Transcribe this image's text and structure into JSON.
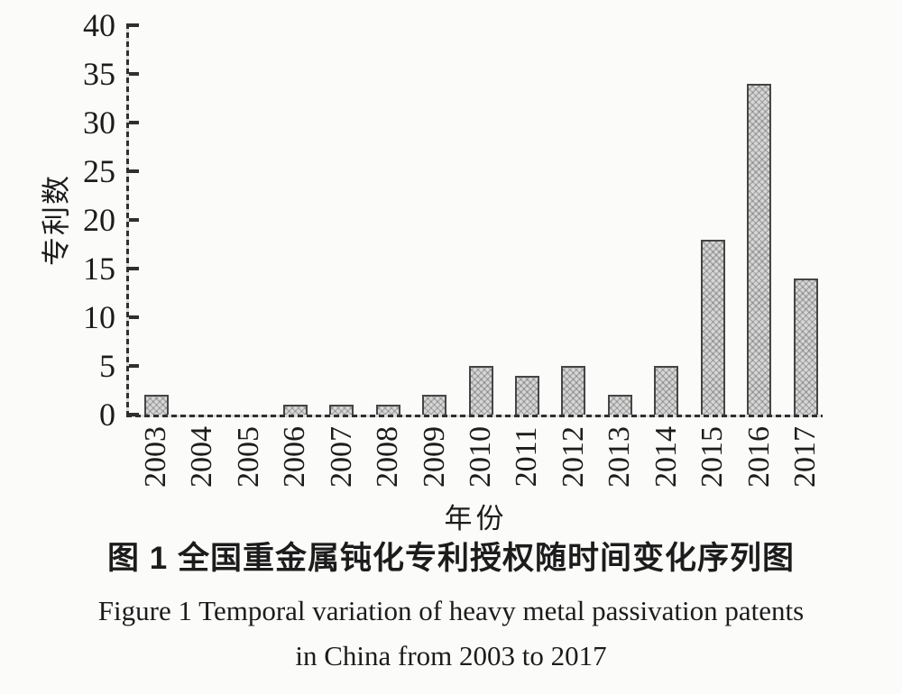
{
  "figure": {
    "caption_zh": "图 1  全国重金属钝化专利授权随时间变化序列图",
    "caption_en_line1": "Figure 1  Temporal variation of heavy metal passivation patents",
    "caption_en_line2": "in China from 2003 to 2017"
  },
  "chart_data": {
    "type": "bar",
    "title": "图 1 全国重金属钝化专利授权随时间变化序列图",
    "xlabel": "年份",
    "ylabel": "专利数",
    "categories": [
      "2003",
      "2004",
      "2005",
      "2006",
      "2007",
      "2008",
      "2009",
      "2010",
      "2011",
      "2012",
      "2013",
      "2014",
      "2015",
      "2016",
      "2017"
    ],
    "values": [
      2,
      0,
      0,
      1,
      1,
      1,
      2,
      5,
      4,
      5,
      2,
      5,
      18,
      34,
      14
    ],
    "ylim": [
      0,
      40
    ],
    "yticks": [
      0,
      5,
      10,
      15,
      20,
      25,
      30,
      35,
      40
    ],
    "grid": false,
    "legend": "none",
    "colors": {
      "bar_fill": "#d7d7d7",
      "bar_border": "#454545",
      "axis": "#2f2f2f",
      "text": "#1c1c1c"
    }
  }
}
